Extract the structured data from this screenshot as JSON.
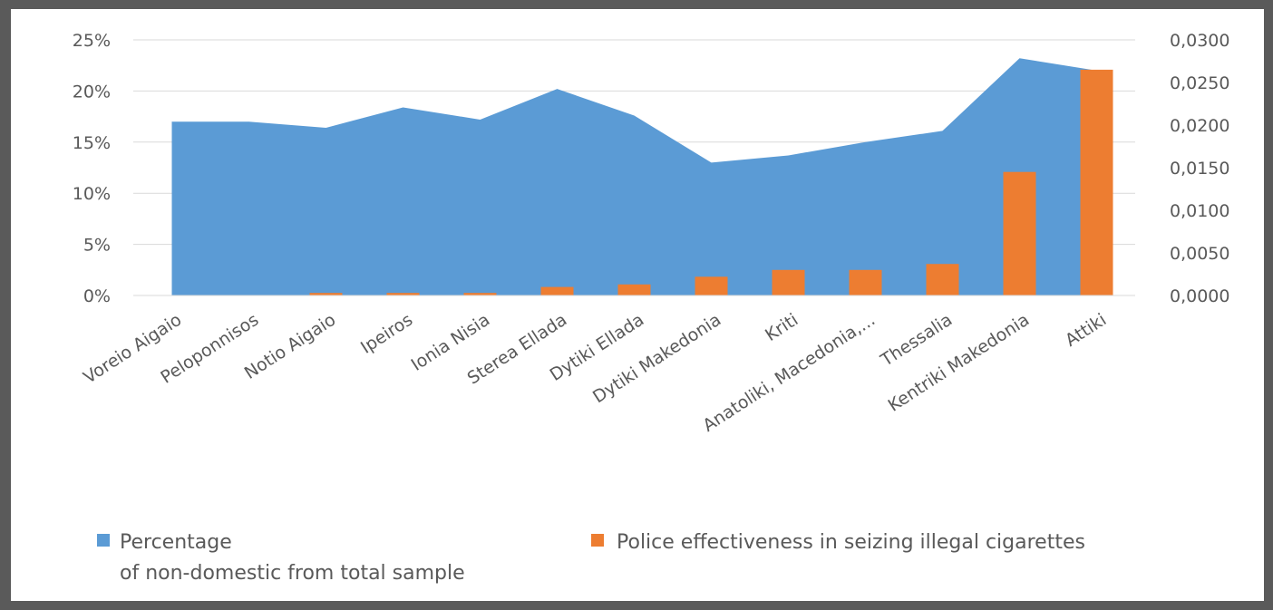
{
  "chart_data": {
    "type": "area",
    "categories": [
      "Voreio Aigaio",
      "Peloponnisos",
      "Notio Aigaio",
      "Ipeiros",
      "Ionia Nisia",
      "Sterea Ellada",
      "Dytiki Ellada",
      "Dytiki Makedonia",
      "Kriti",
      "Anatoliki, Macedonia,...",
      "Thessalia",
      "Kentriki Makedonia",
      "Attiki"
    ],
    "series": [
      {
        "name": "Percentage of non-domestic from total sample",
        "name_lines": [
          "Percentage",
          "of non-domestic from total sample"
        ],
        "type": "area",
        "axis": "left",
        "color": "#5b9bd5",
        "values": [
          0.17,
          0.17,
          0.164,
          0.184,
          0.172,
          0.202,
          0.176,
          0.13,
          0.137,
          0.15,
          0.161,
          0.232,
          0.22
        ]
      },
      {
        "name": "Police effectiveness in seizing illegal cigarettes",
        "type": "bar",
        "axis": "right",
        "color": "#ed7d31",
        "values": [
          0.0,
          0.0,
          0.0003,
          0.0003,
          0.0003,
          0.001,
          0.0013,
          0.0022,
          0.003,
          0.003,
          0.0037,
          0.0145,
          0.0265
        ]
      }
    ],
    "y_left": {
      "ylim": [
        0,
        0.25
      ],
      "ticks": [
        0,
        0.05,
        0.1,
        0.15,
        0.2,
        0.25
      ],
      "tick_labels": [
        "0%",
        "5%",
        "10%",
        "15%",
        "20%",
        "25%"
      ]
    },
    "y_right": {
      "ylim": [
        0,
        0.03
      ],
      "ticks": [
        0,
        0.005,
        0.01,
        0.015,
        0.02,
        0.025,
        0.03
      ],
      "tick_labels": [
        "0,0000",
        "0,0050",
        "0,0100",
        "0,0150",
        "0,0200",
        "0,0250",
        "0,0300"
      ]
    },
    "grid": true,
    "legend_position": "bottom"
  }
}
